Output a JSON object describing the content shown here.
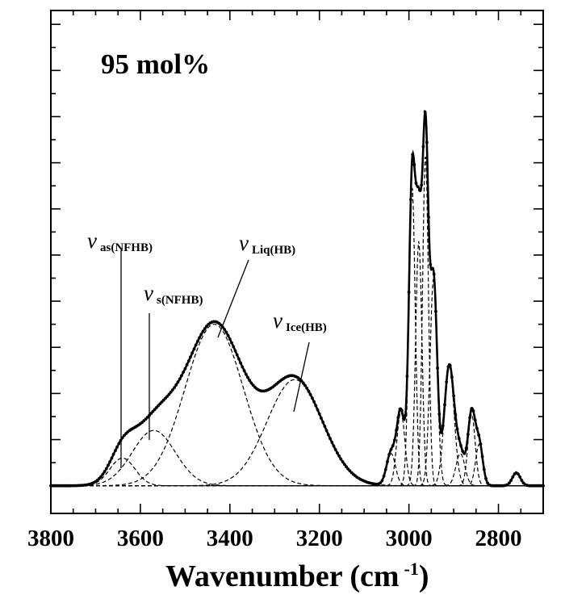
{
  "chart_data": {
    "type": "line",
    "panel_label": "95 mol%",
    "xlabel": "Wavenumber (cm",
    "xlabel_exp": "-1",
    "xlabel_close": ")",
    "xlim": [
      3800,
      2700
    ],
    "ylim": [
      -0.6,
      10.3
    ],
    "x_ticks": [
      3800,
      3600,
      3400,
      3200,
      3000,
      2800
    ],
    "y_labels_shown": false,
    "grid": false,
    "legend": "none",
    "annotations": [
      {
        "id": "as",
        "symbol": "ν",
        "subscript": "as(NFHB)"
      },
      {
        "id": "s",
        "symbol": "ν",
        "subscript": "s(NFHB)"
      },
      {
        "id": "liq",
        "symbol": "ν",
        "subscript": "Liq(HB)"
      },
      {
        "id": "ice",
        "symbol": "ν",
        "subscript": "Ice(HB)"
      }
    ],
    "components": [
      {
        "role": "nu_as(NFHB)",
        "center": 3640,
        "amplitude": 0.6,
        "width": 28
      },
      {
        "role": "nu_s(NFHB)",
        "center": 3570,
        "amplitude": 1.2,
        "width": 48
      },
      {
        "role": "nu_Liq(HB)",
        "center": 3435,
        "amplitude": 3.5,
        "width": 65
      },
      {
        "role": "nu_Ice(HB)",
        "center": 3255,
        "amplitude": 2.3,
        "width": 62
      },
      {
        "role": "CH",
        "center": 3040,
        "amplitude": 0.7,
        "width": 10
      },
      {
        "role": "CH",
        "center": 3018,
        "amplitude": 1.6,
        "width": 9
      },
      {
        "role": "CH",
        "center": 2993,
        "amplitude": 6.5,
        "width": 7
      },
      {
        "role": "CH",
        "center": 2978,
        "amplitude": 5.3,
        "width": 7
      },
      {
        "role": "CH",
        "center": 2963,
        "amplitude": 7.2,
        "width": 6.5
      },
      {
        "role": "CH",
        "center": 2945,
        "amplitude": 4.5,
        "width": 8
      },
      {
        "role": "CH",
        "center": 2910,
        "amplitude": 2.6,
        "width": 11
      },
      {
        "role": "CH",
        "center": 2885,
        "amplitude": 0.7,
        "width": 10
      },
      {
        "role": "CH",
        "center": 2860,
        "amplitude": 1.55,
        "width": 8
      },
      {
        "role": "CH",
        "center": 2843,
        "amplitude": 0.9,
        "width": 8
      },
      {
        "role": "CH",
        "center": 2760,
        "amplitude": 0.28,
        "width": 9
      }
    ],
    "peaks": [
      {
        "x": 3640,
        "y": 1.45
      },
      {
        "x": 3430,
        "y": 3.7
      },
      {
        "x": 3270,
        "y": 2.8
      },
      {
        "x": 2990,
        "y": 8.4
      },
      {
        "x": 2962,
        "y": 10.0
      },
      {
        "x": 2905,
        "y": 2.9
      },
      {
        "x": 2855,
        "y": 2.2
      },
      {
        "x": 2760,
        "y": 0.3
      }
    ]
  }
}
